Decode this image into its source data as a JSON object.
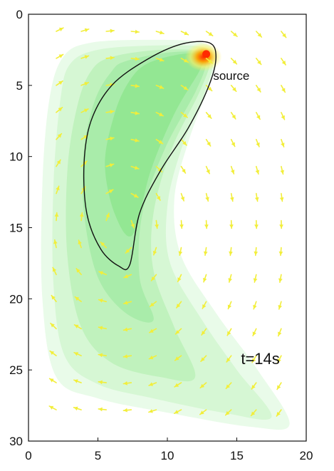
{
  "chart_data": {
    "type": "heatmap",
    "title": "",
    "xlabel": "",
    "ylabel": "",
    "xlim": [
      0,
      20
    ],
    "ylim": [
      30,
      0
    ],
    "y_inverted": true,
    "x_ticks": [
      0,
      5,
      10,
      15,
      20
    ],
    "y_ticks": [
      0,
      5,
      10,
      15,
      20,
      25,
      30
    ],
    "grid": false,
    "colors": {
      "frame": "#111111",
      "arrow": "#f2ee3a",
      "contour": "#111111",
      "levels": [
        "#e9fbe9",
        "#d6f7d4",
        "#c0f2bd",
        "#a9ecaa",
        "#93e793"
      ],
      "hotspot": [
        "#ff2a00",
        "#ffa000",
        "#fff066"
      ]
    },
    "plume_levels": [
      [
        [
          4.5,
          2.0
        ],
        [
          9.0,
          1.8
        ],
        [
          12.5,
          2.0
        ],
        [
          13.5,
          3.0
        ],
        [
          13.0,
          5.0
        ],
        [
          11.5,
          9.0
        ],
        [
          10.5,
          13.0
        ],
        [
          11.0,
          17.0
        ],
        [
          13.5,
          21.0
        ],
        [
          16.5,
          25.0
        ],
        [
          18.8,
          28.8
        ],
        [
          16.0,
          29.0
        ],
        [
          10.0,
          28.0
        ],
        [
          5.0,
          27.0
        ],
        [
          2.0,
          25.5
        ],
        [
          1.0,
          20.0
        ],
        [
          1.0,
          12.0
        ],
        [
          1.5,
          6.0
        ],
        [
          2.5,
          3.0
        ]
      ],
      [
        [
          5.0,
          2.5
        ],
        [
          9.0,
          2.2
        ],
        [
          12.5,
          2.3
        ],
        [
          13.3,
          3.2
        ],
        [
          12.7,
          5.5
        ],
        [
          11.0,
          9.5
        ],
        [
          10.0,
          13.5
        ],
        [
          10.2,
          17.5
        ],
        [
          12.5,
          21.5
        ],
        [
          15.0,
          25.0
        ],
        [
          17.5,
          28.3
        ],
        [
          14.0,
          28.0
        ],
        [
          9.0,
          27.0
        ],
        [
          5.0,
          26.0
        ],
        [
          2.6,
          24.0
        ],
        [
          1.8,
          19.0
        ],
        [
          1.8,
          12.0
        ],
        [
          2.3,
          6.0
        ],
        [
          3.0,
          3.5
        ]
      ],
      [
        [
          6.0,
          3.0
        ],
        [
          9.5,
          2.5
        ],
        [
          12.5,
          2.6
        ],
        [
          13.1,
          3.3
        ],
        [
          12.3,
          5.5
        ],
        [
          10.3,
          9.5
        ],
        [
          9.0,
          14.0
        ],
        [
          9.0,
          18.0
        ],
        [
          10.5,
          22.0
        ],
        [
          12.0,
          25.5
        ],
        [
          9.5,
          25.5
        ],
        [
          6.0,
          24.5
        ],
        [
          3.8,
          22.0
        ],
        [
          2.8,
          17.0
        ],
        [
          2.8,
          11.0
        ],
        [
          3.5,
          6.5
        ],
        [
          4.5,
          4.0
        ]
      ],
      [
        [
          7.0,
          3.3
        ],
        [
          10.0,
          2.7
        ],
        [
          12.6,
          2.7
        ],
        [
          12.8,
          3.5
        ],
        [
          12.0,
          5.5
        ],
        [
          9.8,
          9.5
        ],
        [
          8.2,
          14.0
        ],
        [
          8.0,
          18.5
        ],
        [
          9.0,
          21.5
        ],
        [
          7.0,
          21.0
        ],
        [
          5.0,
          18.5
        ],
        [
          4.0,
          14.0
        ],
        [
          4.0,
          9.5
        ],
        [
          4.8,
          6.0
        ],
        [
          6.0,
          4.0
        ]
      ],
      [
        [
          8.5,
          3.5
        ],
        [
          11.0,
          2.8
        ],
        [
          12.6,
          2.9
        ],
        [
          12.3,
          4.0
        ],
        [
          10.5,
          7.0
        ],
        [
          8.8,
          11.0
        ],
        [
          7.5,
          15.5
        ],
        [
          6.2,
          14.0
        ],
        [
          5.5,
          10.5
        ],
        [
          6.2,
          7.0
        ],
        [
          7.2,
          4.8
        ]
      ]
    ],
    "contour_path": [
      [
        13.0,
        2.0
      ],
      [
        13.5,
        3.0
      ],
      [
        13.0,
        5.0
      ],
      [
        11.5,
        8.0
      ],
      [
        9.5,
        11.0
      ],
      [
        8.0,
        14.0
      ],
      [
        7.3,
        17.6
      ],
      [
        6.5,
        17.7
      ],
      [
        5.2,
        16.5
      ],
      [
        4.2,
        14.0
      ],
      [
        4.0,
        10.5
      ],
      [
        4.5,
        7.5
      ],
      [
        6.0,
        5.0
      ],
      [
        8.5,
        3.2
      ],
      [
        11.0,
        2.1
      ]
    ],
    "source_point": [
      12.8,
      2.8
    ],
    "annotations": [
      {
        "text": "source",
        "x": 13.3,
        "y": 4.6
      },
      {
        "text": "t=14s",
        "x": 15.3,
        "y": 24.6
      }
    ],
    "vector_field": {
      "nx": 10,
      "ny": 15,
      "x_start": 2.0,
      "x_step": 1.8,
      "y_start": 1.2,
      "y_step": 1.9
    }
  }
}
